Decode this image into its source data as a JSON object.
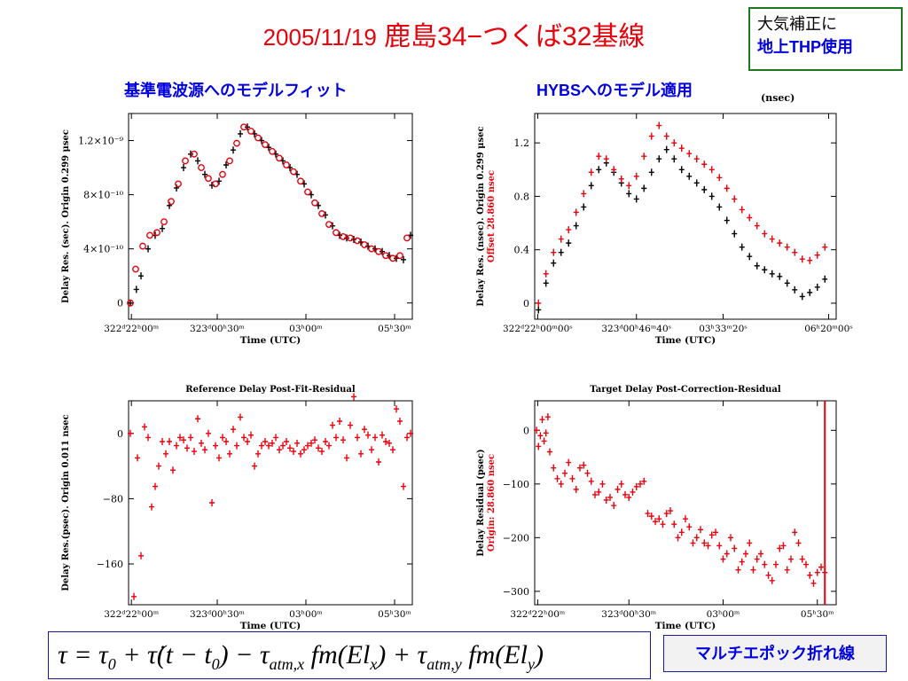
{
  "title": {
    "date": "2005/11/19",
    "baseline": "鹿島34−つくば32基線"
  },
  "note": {
    "line1": "大気補正に",
    "line2": "地上THP使用"
  },
  "subtitles": {
    "left": "基準電波源へのモデルフィット",
    "right": "HYBSへのモデル適用"
  },
  "unit_note": "(nsec)",
  "formula": {
    "tau": "τ",
    "equals": " = ",
    "tau0": "τ",
    "sub0": "0",
    "plus1": " + ",
    "taudot": "τ̇",
    "paren": "(t − t",
    "sub0b": "0",
    "close": ") − τ",
    "sub_atm_x": "atm,x",
    "fm1": " fm(El",
    "sub_x": "x",
    "mid": ") + τ",
    "sub_atm_y": "atm,y",
    "fm2": " fm(El",
    "sub_y": "y",
    "end": ")"
  },
  "badge": "マルチエポック折れ線",
  "colors": {
    "red": "#e8000b",
    "black": "#000000",
    "blue": "#0000e0",
    "green": "#1a7a1a"
  },
  "chart_data": [
    {
      "id": "fit",
      "type": "scatter",
      "title": "",
      "xlabel": "Time (UTC)",
      "ylabel": "Delay Res. (sec). Origin 0.299 μsec",
      "ylabel_red": "",
      "xlim": [
        0,
        8
      ],
      "ylim": [
        -0.12,
        1.4
      ],
      "yticks": [
        0,
        0.4,
        0.8,
        1.2
      ],
      "yticklabels": [
        "0",
        "4×10⁻¹⁰",
        "8×10⁻¹⁰",
        "1.2×10⁻⁹"
      ],
      "xticks": [
        0.08,
        2.5,
        5.0,
        7.5
      ],
      "xticklabels": [
        "322ᵈ22ʰ00ᵐ",
        "323ᵈ00ʰ30ᵐ",
        "03ʰ00ᵐ",
        "05ʰ30ᵐ"
      ],
      "series": [
        {
          "color": "#000000",
          "marker": "plus",
          "x": [
            0.05,
            0.22,
            0.35,
            0.55,
            0.75,
            0.95,
            1.15,
            1.35,
            1.55,
            1.75,
            1.95,
            2.15,
            2.35,
            2.55,
            2.75,
            2.95,
            3.15,
            3.35,
            3.55,
            3.75,
            3.95,
            4.15,
            4.35,
            4.55,
            4.75,
            4.95,
            5.15,
            5.35,
            5.55,
            5.75,
            5.95,
            6.15,
            6.35,
            6.55,
            6.75,
            6.95,
            7.15,
            7.35,
            7.55,
            7.75,
            7.95
          ],
          "y": [
            0.0,
            0.1,
            0.2,
            0.4,
            0.5,
            0.55,
            0.72,
            0.85,
            1.0,
            1.1,
            1.05,
            0.95,
            0.87,
            0.9,
            1.02,
            1.13,
            1.25,
            1.3,
            1.25,
            1.2,
            1.15,
            1.1,
            1.05,
            1.0,
            0.95,
            0.88,
            0.8,
            0.72,
            0.65,
            0.57,
            0.5,
            0.48,
            0.47,
            0.45,
            0.42,
            0.4,
            0.38,
            0.35,
            0.33,
            0.32,
            0.5
          ]
        },
        {
          "color": "#e8000b",
          "marker": "circle",
          "x": [
            0.05,
            0.2,
            0.4,
            0.6,
            0.8,
            1.0,
            1.2,
            1.4,
            1.6,
            1.85,
            2.05,
            2.25,
            2.45,
            2.65,
            2.85,
            3.05,
            3.25,
            3.45,
            3.65,
            3.85,
            4.05,
            4.25,
            4.45,
            4.65,
            4.85,
            5.05,
            5.25,
            5.45,
            5.65,
            5.85,
            6.05,
            6.25,
            6.45,
            6.65,
            6.85,
            7.05,
            7.25,
            7.45,
            7.65,
            7.85
          ],
          "y": [
            0.0,
            0.25,
            0.42,
            0.5,
            0.52,
            0.6,
            0.75,
            0.88,
            1.05,
            1.1,
            1.0,
            0.92,
            0.88,
            0.95,
            1.05,
            1.18,
            1.3,
            1.27,
            1.22,
            1.17,
            1.12,
            1.07,
            1.02,
            0.97,
            0.9,
            0.82,
            0.74,
            0.66,
            0.58,
            0.52,
            0.49,
            0.48,
            0.46,
            0.43,
            0.4,
            0.38,
            0.35,
            0.33,
            0.35,
            0.48
          ]
        }
      ]
    },
    {
      "id": "hybs",
      "type": "scatter",
      "title": "",
      "xlabel": "Time (UTC)",
      "ylabel": "Delay Res. (nsec). Origin 0.299 μsec",
      "ylabel_red": "Offset 28.860 nsec",
      "xlim": [
        0,
        8
      ],
      "ylim": [
        -0.12,
        1.42
      ],
      "yticks": [
        0,
        0.4,
        0.8,
        1.2
      ],
      "yticklabels": [
        "0",
        "0.4",
        "0.8",
        "1.2"
      ],
      "xticks": [
        0.08,
        2.7,
        5.0,
        7.8
      ],
      "xticklabels": [
        "322ᵈ22ʰ00ᵐ00ˢ",
        "323ᵈ00ʰ46ᵐ40ˢ",
        "03ʰ33ᵐ20ˢ",
        "06ʰ20ᵐ00ˢ"
      ],
      "series": [
        {
          "color": "#000000",
          "marker": "plus",
          "x": [
            0.1,
            0.3,
            0.5,
            0.7,
            0.9,
            1.1,
            1.3,
            1.5,
            1.7,
            1.9,
            2.1,
            2.3,
            2.5,
            2.7,
            2.9,
            3.1,
            3.3,
            3.5,
            3.7,
            3.9,
            4.1,
            4.3,
            4.5,
            4.7,
            4.9,
            5.1,
            5.3,
            5.5,
            5.7,
            5.9,
            6.1,
            6.3,
            6.5,
            6.7,
            6.9,
            7.1,
            7.3,
            7.5,
            7.7
          ],
          "y": [
            -0.05,
            0.15,
            0.3,
            0.38,
            0.45,
            0.58,
            0.72,
            0.88,
            1.0,
            1.05,
            0.98,
            0.9,
            0.82,
            0.78,
            0.86,
            0.98,
            1.08,
            1.15,
            1.08,
            1.0,
            0.95,
            0.9,
            0.85,
            0.8,
            0.72,
            0.62,
            0.52,
            0.42,
            0.35,
            0.28,
            0.25,
            0.22,
            0.2,
            0.15,
            0.1,
            0.05,
            0.08,
            0.12,
            0.18
          ]
        },
        {
          "color": "#e8000b",
          "marker": "plus",
          "x": [
            0.1,
            0.3,
            0.5,
            0.7,
            0.9,
            1.1,
            1.3,
            1.5,
            1.7,
            1.9,
            2.1,
            2.3,
            2.5,
            2.7,
            2.9,
            3.1,
            3.3,
            3.5,
            3.7,
            3.9,
            4.1,
            4.3,
            4.5,
            4.7,
            4.9,
            5.1,
            5.3,
            5.5,
            5.7,
            5.9,
            6.1,
            6.3,
            6.5,
            6.7,
            6.9,
            7.1,
            7.3,
            7.5,
            7.7
          ],
          "y": [
            0.0,
            0.22,
            0.38,
            0.48,
            0.55,
            0.68,
            0.82,
            0.98,
            1.1,
            1.08,
            1.0,
            0.93,
            0.88,
            0.95,
            1.1,
            1.25,
            1.33,
            1.25,
            1.2,
            1.16,
            1.12,
            1.08,
            1.04,
            1.0,
            0.94,
            0.86,
            0.78,
            0.7,
            0.64,
            0.58,
            0.52,
            0.48,
            0.45,
            0.42,
            0.38,
            0.33,
            0.32,
            0.36,
            0.42
          ]
        }
      ]
    },
    {
      "id": "refres",
      "type": "scatter",
      "title": "Reference Delay Post-Fit-Residual",
      "xlabel": "Time (UTC)",
      "ylabel": "Delay Res.(psec). Origin 0.011 nsec",
      "ylabel_red": "",
      "xlim": [
        0,
        8
      ],
      "ylim": [
        -210,
        40
      ],
      "yticks": [
        -160,
        -80,
        0
      ],
      "yticklabels": [
        "−160",
        "−80",
        "0"
      ],
      "xticks": [
        0.08,
        2.5,
        5.0,
        7.5
      ],
      "xticklabels": [
        "322ᵈ22ʰ00ᵐ",
        "323ᵈ00ʰ30ᵐ",
        "03ʰ00ᵐ",
        "05ʰ30ᵐ"
      ],
      "series": [
        {
          "color": "#e8000b",
          "marker": "plus",
          "x": [
            0.05,
            0.15,
            0.25,
            0.35,
            0.45,
            0.55,
            0.65,
            0.75,
            0.85,
            0.95,
            1.05,
            1.15,
            1.25,
            1.35,
            1.45,
            1.55,
            1.65,
            1.75,
            1.85,
            1.95,
            2.05,
            2.15,
            2.25,
            2.35,
            2.45,
            2.55,
            2.65,
            2.75,
            2.85,
            2.95,
            3.05,
            3.15,
            3.25,
            3.35,
            3.45,
            3.55,
            3.65,
            3.75,
            3.85,
            3.95,
            4.05,
            4.15,
            4.25,
            4.35,
            4.45,
            4.55,
            4.65,
            4.75,
            4.85,
            4.95,
            5.05,
            5.15,
            5.25,
            5.35,
            5.45,
            5.55,
            5.65,
            5.75,
            5.85,
            5.95,
            6.05,
            6.15,
            6.25,
            6.35,
            6.45,
            6.55,
            6.65,
            6.75,
            6.85,
            6.95,
            7.05,
            7.15,
            7.25,
            7.35,
            7.45,
            7.55,
            7.65,
            7.75,
            7.85,
            7.95
          ],
          "y": [
            0,
            -200,
            -30,
            -150,
            8,
            -5,
            -90,
            -65,
            -40,
            -10,
            -25,
            -10,
            -45,
            -15,
            -5,
            -8,
            -18,
            -5,
            -22,
            18,
            -12,
            -20,
            0,
            -85,
            -15,
            -30,
            -5,
            -10,
            -25,
            5,
            -15,
            20,
            -5,
            -10,
            -2,
            -40,
            -25,
            -15,
            -10,
            -15,
            -12,
            -5,
            -20,
            -15,
            -10,
            -18,
            -22,
            -12,
            -25,
            -20,
            -15,
            -12,
            -8,
            -18,
            -22,
            -10,
            -15,
            10,
            -5,
            15,
            -8,
            -30,
            10,
            45,
            -5,
            -25,
            5,
            -2,
            -20,
            -5,
            -35,
            -2,
            -10,
            -12,
            -20,
            30,
            15,
            -65,
            -5,
            0
          ]
        }
      ]
    },
    {
      "id": "tgtres",
      "type": "scatter",
      "title": "Target Delay Post-Correction-Residual",
      "xlabel": "Time (UTC)",
      "ylabel": "Delay Residual (psec)",
      "ylabel_red": "Origin: 28.860 nsec",
      "xlim": [
        0,
        8
      ],
      "ylim": [
        -325,
        55
      ],
      "yticks": [
        -300,
        -200,
        -100,
        0
      ],
      "yticklabels": [
        "−300",
        "−200",
        "−100",
        "0"
      ],
      "xticks": [
        0.08,
        2.5,
        5.0,
        7.5
      ],
      "xticklabels": [
        "322ᵈ22ʰ00ᵐ",
        "323ᵈ00ʰ30ᵐ",
        "03ʰ00ᵐ",
        "05ʰ30ᵐ"
      ],
      "marker_line_x": 7.7,
      "series": [
        {
          "color": "#e8000b",
          "marker": "plus",
          "x": [
            0.05,
            0.1,
            0.15,
            0.2,
            0.25,
            0.3,
            0.35,
            0.4,
            0.5,
            0.6,
            0.7,
            0.8,
            0.9,
            1.0,
            1.1,
            1.2,
            1.3,
            1.4,
            1.5,
            1.6,
            1.7,
            1.8,
            1.9,
            2.0,
            2.1,
            2.2,
            2.3,
            2.4,
            2.5,
            2.6,
            2.7,
            2.8,
            2.9,
            3.0,
            3.1,
            3.2,
            3.3,
            3.4,
            3.5,
            3.6,
            3.7,
            3.8,
            3.9,
            4.0,
            4.1,
            4.2,
            4.3,
            4.4,
            4.5,
            4.6,
            4.7,
            4.8,
            4.9,
            5.0,
            5.1,
            5.2,
            5.3,
            5.4,
            5.5,
            5.6,
            5.7,
            5.8,
            5.9,
            6.0,
            6.1,
            6.2,
            6.3,
            6.4,
            6.5,
            6.6,
            6.7,
            6.8,
            6.9,
            7.0,
            7.1,
            7.2,
            7.3,
            7.4,
            7.5,
            7.6,
            7.7
          ],
          "y": [
            0,
            -30,
            -10,
            20,
            -20,
            -5,
            25,
            -40,
            -70,
            -90,
            -100,
            -80,
            -60,
            -90,
            -110,
            -70,
            -65,
            -80,
            -95,
            -120,
            -115,
            -100,
            -130,
            -125,
            -140,
            -110,
            -100,
            -120,
            -125,
            -115,
            -105,
            -100,
            -95,
            -155,
            -160,
            -170,
            -165,
            -175,
            -155,
            -150,
            -175,
            -200,
            -190,
            -165,
            -180,
            -210,
            -200,
            -185,
            -210,
            -215,
            -195,
            -190,
            -215,
            -240,
            -230,
            -200,
            -220,
            -260,
            -245,
            -230,
            -210,
            -260,
            -240,
            -230,
            -250,
            -270,
            -280,
            -250,
            -220,
            -215,
            -260,
            -240,
            -190,
            -210,
            -240,
            -250,
            -270,
            -285,
            -265,
            -255,
            -265
          ]
        }
      ]
    }
  ]
}
